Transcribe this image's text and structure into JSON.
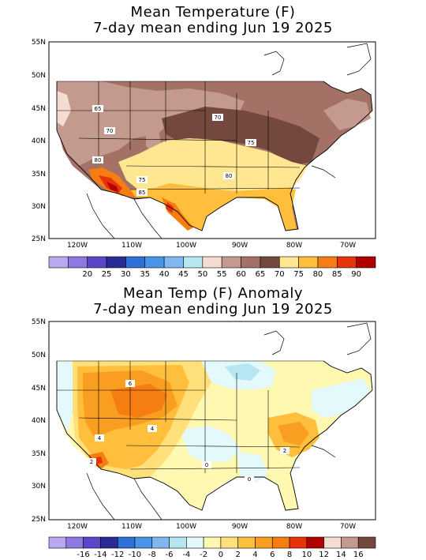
{
  "panel1": {
    "title_line1": "Mean Temperature (F)",
    "title_line2": "7-day mean ending Jun 19 2025",
    "lat_labels": [
      "55N",
      "50N",
      "45N",
      "40N",
      "35N",
      "30N",
      "25N"
    ],
    "lon_labels": [
      "120W",
      "110W",
      "100W",
      "90W",
      "80W",
      "70W"
    ],
    "contour_labels": [
      "65",
      "70",
      "70",
      "75",
      "80",
      "75",
      "80",
      "85"
    ],
    "colorbar": {
      "colors": [
        "#b9a7f0",
        "#8f78e0",
        "#5a46c8",
        "#2b2b96",
        "#2f6fd6",
        "#4a95e8",
        "#7fb8f0",
        "#b6e6f2",
        "#f4dcd3",
        "#c49a8e",
        "#a37165",
        "#74483f",
        "#ffe690",
        "#ffbe3c",
        "#f57d12",
        "#e8320a",
        "#b00000"
      ],
      "labels": [
        "20",
        "25",
        "30",
        "35",
        "40",
        "45",
        "50",
        "55",
        "60",
        "65",
        "70",
        "75",
        "80",
        "85",
        "90"
      ]
    }
  },
  "panel2": {
    "title_line1": "Mean Temp (F) Anomaly",
    "title_line2": "7-day mean ending Jun 19 2025",
    "lat_labels": [
      "55N",
      "50N",
      "45N",
      "40N",
      "35N",
      "30N",
      "25N"
    ],
    "lon_labels": [
      "120W",
      "110W",
      "100W",
      "90W",
      "80W",
      "70W"
    ],
    "contour_labels": [
      "6",
      "4",
      "4",
      "2",
      "0",
      "0",
      "2"
    ],
    "colorbar": {
      "colors": [
        "#b9a7f0",
        "#8f78e0",
        "#5a46c8",
        "#2b2b96",
        "#2f6fd6",
        "#4a95e8",
        "#7fb8f0",
        "#b6e6f2",
        "#e3f9fb",
        "#fff8b0",
        "#ffe07a",
        "#ffbe3c",
        "#f99e20",
        "#f57d12",
        "#e8320a",
        "#b00000",
        "#f4dcd3",
        "#c49a8e",
        "#74483f"
      ],
      "labels": [
        "-16",
        "-14",
        "-12",
        "-10",
        "-8",
        "-6",
        "-4",
        "-2",
        "0",
        "2",
        "4",
        "6",
        "8",
        "10",
        "12",
        "14",
        "16"
      ]
    }
  }
}
